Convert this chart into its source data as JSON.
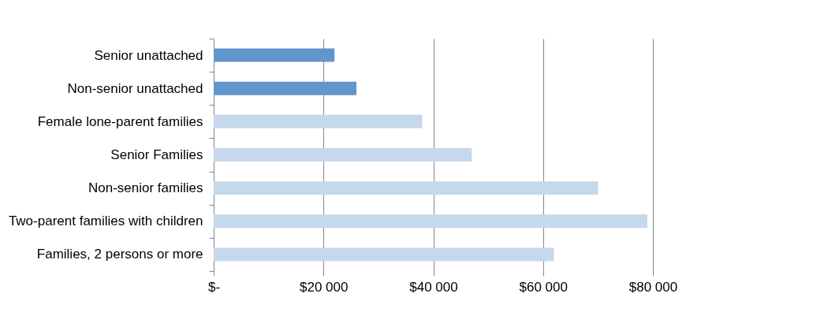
{
  "chart_data": {
    "type": "bar",
    "orientation": "horizontal",
    "categories": [
      "Senior unattached",
      "Non-senior unattached",
      "Female lone-parent families",
      "Senior Families",
      "Non-senior families",
      "Two-parent families with children",
      "Families, 2 persons or more"
    ],
    "values": [
      22000,
      26000,
      38000,
      47000,
      70000,
      79000,
      62000
    ],
    "colors": [
      "#6096c9",
      "#6096c9",
      "#c5d8ec",
      "#c5d8ec",
      "#c5d8ec",
      "#c5d8ec",
      "#c5d8ec"
    ],
    "xlim": [
      0,
      80000
    ],
    "xticks": [
      {
        "value": 0,
        "label": "$-"
      },
      {
        "value": 20000,
        "label": "$20 000"
      },
      {
        "value": 40000,
        "label": "$40 000"
      },
      {
        "value": 60000,
        "label": "$60 000"
      },
      {
        "value": 80000,
        "label": "$80 000"
      }
    ],
    "grid": "x"
  }
}
